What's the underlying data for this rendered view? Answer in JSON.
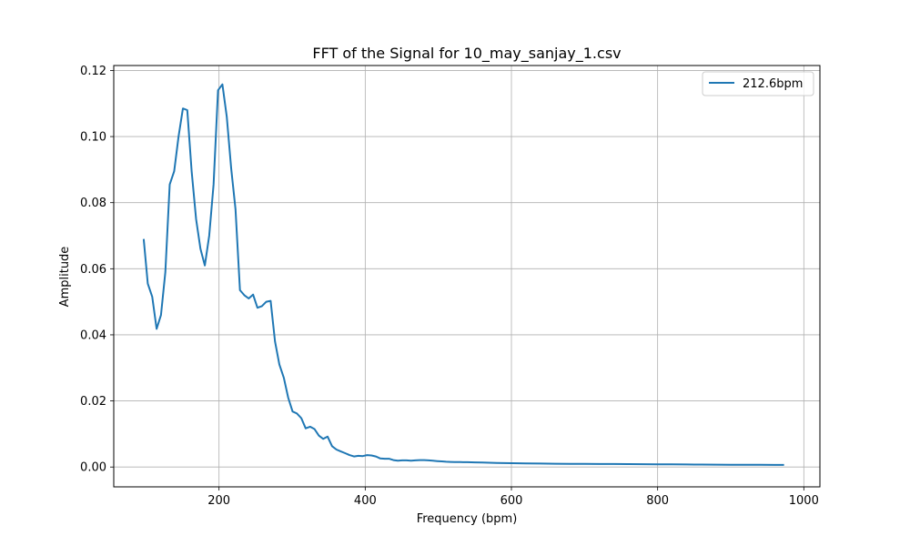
{
  "chart_data": {
    "type": "line",
    "title": "FFT of the Signal for 10_may_sanjay_1.csv",
    "xlabel": "Frequency (bpm)",
    "ylabel": "Amplitude",
    "xlim": [
      56,
      1022
    ],
    "ylim": [
      -0.006,
      0.1215
    ],
    "xticks": [
      200,
      400,
      600,
      800,
      1000
    ],
    "yticks": [
      0.0,
      0.02,
      0.04,
      0.06,
      0.08,
      0.1,
      0.12
    ],
    "ytick_labels": [
      "0.00",
      "0.02",
      "0.04",
      "0.06",
      "0.08",
      "0.10",
      "0.12"
    ],
    "xtick_labels": [
      "200",
      "400",
      "600",
      "800",
      "1000"
    ],
    "grid": true,
    "legend_position": "top-right",
    "series": [
      {
        "name": "212.6bpm",
        "color": "#1f77b4",
        "x": [
          96.9,
          102.6,
          108.6,
          114.6,
          120.6,
          126.6,
          132.6,
          138.6,
          144.6,
          150.6,
          156.6,
          162.6,
          168.6,
          174.6,
          180.6,
          186.6,
          192.6,
          198.6,
          204.6,
          210.6,
          216.6,
          222.6,
          228.6,
          234.6,
          240.6,
          246.6,
          252.6,
          258.6,
          264.6,
          270.6,
          276.6,
          282.6,
          288.6,
          294.6,
          300.6,
          306.6,
          312.6,
          318.6,
          324.6,
          330.6,
          336.6,
          342.6,
          348.6,
          354.6,
          360.6,
          366.6,
          372.6,
          378.6,
          384.6,
          390.6,
          396.6,
          402.6,
          408.6,
          414.6,
          420.6,
          426.6,
          432.6,
          438.6,
          444.6,
          450.6,
          456.6,
          462.6,
          468.6,
          474.6,
          480.6,
          486.6,
          492.6,
          498.6,
          504.6,
          510.6,
          516.6,
          522.6,
          530,
          540,
          550,
          560,
          570,
          580,
          590,
          600,
          620,
          640,
          660,
          680,
          700,
          720,
          740,
          760,
          780,
          800,
          820,
          840,
          860,
          880,
          900,
          920,
          940,
          960,
          973
        ],
        "y": [
          0.069,
          0.0555,
          0.0515,
          0.0418,
          0.046,
          0.059,
          0.0855,
          0.0895,
          0.1,
          0.1085,
          0.108,
          0.0895,
          0.075,
          0.066,
          0.061,
          0.07,
          0.0855,
          0.114,
          0.1158,
          0.106,
          0.0905,
          0.078,
          0.0535,
          0.052,
          0.051,
          0.0522,
          0.0482,
          0.0487,
          0.05,
          0.0503,
          0.038,
          0.031,
          0.027,
          0.021,
          0.0168,
          0.0162,
          0.0148,
          0.0117,
          0.0122,
          0.0115,
          0.0095,
          0.0085,
          0.0092,
          0.0063,
          0.0053,
          0.0047,
          0.0042,
          0.0036,
          0.0032,
          0.0034,
          0.0033,
          0.0036,
          0.0035,
          0.0032,
          0.0026,
          0.0025,
          0.0025,
          0.0021,
          0.0019,
          0.002,
          0.002,
          0.0019,
          0.002,
          0.0021,
          0.0021,
          0.002,
          0.0019,
          0.0018,
          0.0017,
          0.0016,
          0.00155,
          0.0015,
          0.0015,
          0.00145,
          0.0014,
          0.00135,
          0.0013,
          0.00125,
          0.0012,
          0.00115,
          0.0011,
          0.00105,
          0.001,
          0.00098,
          0.00095,
          0.00092,
          0.0009,
          0.00088,
          0.00085,
          0.00082,
          0.0008,
          0.00078,
          0.00075,
          0.00072,
          0.0007,
          0.00068,
          0.00066,
          0.00065,
          0.00065
        ]
      }
    ]
  }
}
